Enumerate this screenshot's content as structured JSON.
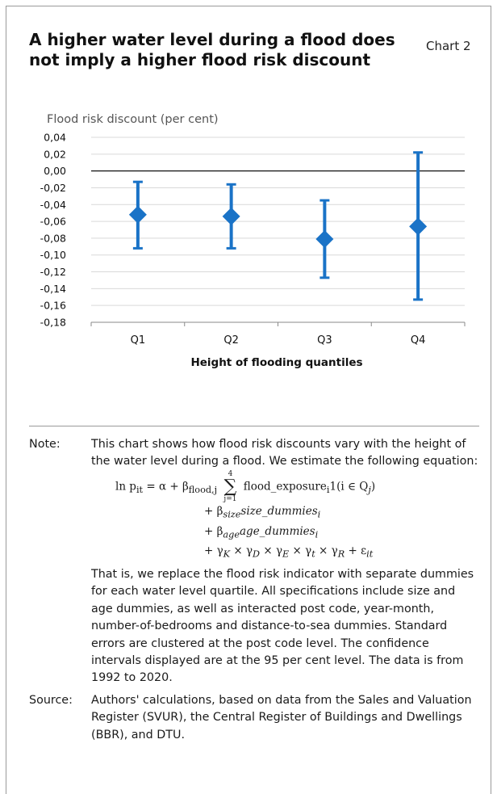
{
  "title": "A higher water level during a flood does not imply a higher flood risk discount",
  "chart_label": "Chart 2",
  "chart_data": {
    "type": "errorbar",
    "ylabel": "Flood risk discount (per cent)",
    "xlabel": "Height of flooding quantiles",
    "categories": [
      "Q1",
      "Q2",
      "Q3",
      "Q4"
    ],
    "values": [
      -0.052,
      -0.054,
      -0.081,
      -0.066
    ],
    "upper": [
      -0.013,
      -0.016,
      -0.035,
      0.022
    ],
    "lower": [
      -0.092,
      -0.092,
      -0.127,
      -0.153
    ],
    "ylim": [
      -0.18,
      0.04
    ],
    "yticks": [
      "0,04",
      "0,02",
      "0,00",
      "-0,02",
      "-0,04",
      "-0,06",
      "-0,08",
      "-0,10",
      "-0,12",
      "-0,14",
      "-0,16",
      "-0,18"
    ],
    "grid": true,
    "color": "#1a73c7"
  },
  "note": {
    "label": "Note:",
    "intro": "This chart shows how flood risk discounts vary with the height of the water level during a flood. We estimate the following equation:",
    "eq1_lhs": "ln p",
    "eq1_lhs_sub": "it",
    "eq1_mid": " = α + β",
    "eq1_mid_sub": "flood,j",
    "sum_top": "4",
    "sum_sym": "∑",
    "sum_bot": "j=1",
    "eq1_rhs": "flood_exposure",
    "eq1_rhs_sub": "i",
    "eq1_rhs_end": "1(i ∈ Q",
    "eq1_rhs_end_sub": "j",
    "eq1_close": ")",
    "eq2": "+ β",
    "eq2_sub": "size",
    "eq2_term": "size_dummies",
    "eq2_term_sub": "i",
    "eq3": "+ β",
    "eq3_sub": "age",
    "eq3_term": "age_dummies",
    "eq3_term_sub": "i",
    "eq4": "+ γ",
    "eq4_K": "K",
    "eq4_x1": " × γ",
    "eq4_D": "D",
    "eq4_x2": " × γ",
    "eq4_E": "E",
    "eq4_x3": " × γ",
    "eq4_t": "t",
    "eq4_x4": " × γ",
    "eq4_R": "R",
    "eq4_eps": " + ε",
    "eq4_it": "it",
    "body": "That is, we replace the flood risk indicator with separate dummies for each water level quartile. All specifications include size and age dummies, as well as interacted post code, year-month, number-of-bedrooms and distance-to-sea dummies. Standard errors are clustered at the post code level. The confidence intervals displayed are at the 95 per cent level. The data is from 1992 to 2020."
  },
  "source": {
    "label": "Source:",
    "text": "Authors' calculations, based on data from the Sales and Valuation Register (SVUR), the Central Register of Buildings and Dwellings  (BBR), and DTU."
  }
}
